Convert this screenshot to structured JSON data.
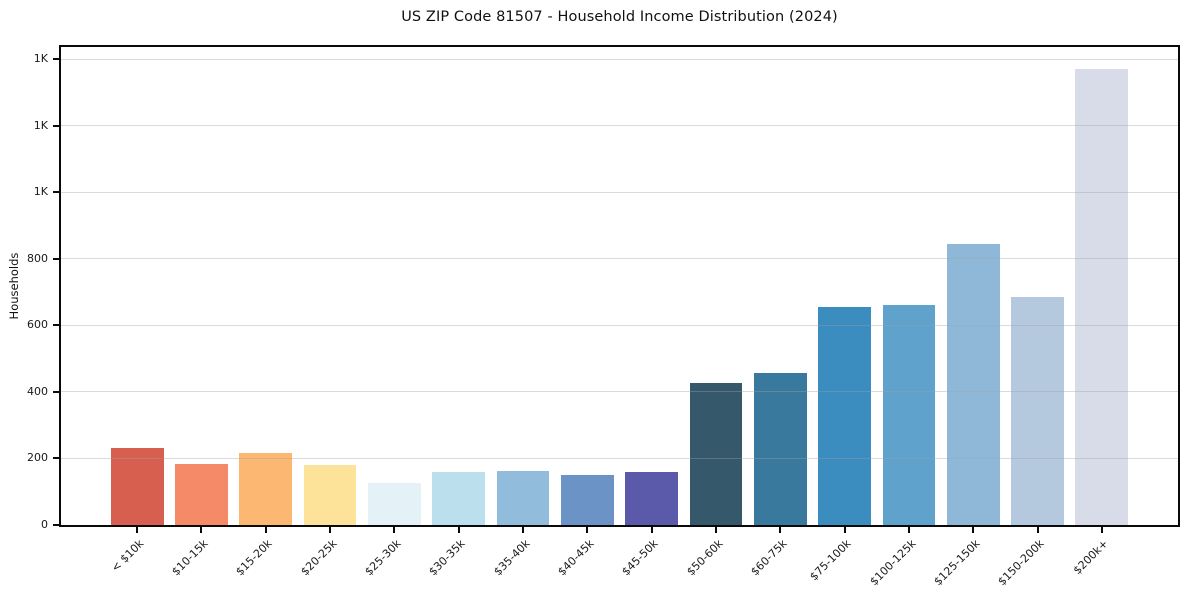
{
  "figure": {
    "title": "US ZIP Code 81507 - Household Income Distribution (2024)",
    "ylabel": "Households"
  },
  "chart_data": {
    "type": "bar",
    "title": "US ZIP Code 81507 - Household Income Distribution (2024)",
    "xlabel": "",
    "ylabel": "Households",
    "categories": [
      "< $10k",
      "$10-15k",
      "$15-20k",
      "$20-25k",
      "$25-30k",
      "$30-35k",
      "$35-40k",
      "$40-45k",
      "$45-50k",
      "$50-60k",
      "$60-75k",
      "$75-100k",
      "$100-125k",
      "$125-150k",
      "$150-200k",
      "$200k+"
    ],
    "values": [
      232,
      183,
      216,
      179,
      126,
      158,
      163,
      150,
      158,
      428,
      458,
      655,
      660,
      845,
      685,
      1370
    ],
    "bar_colors": [
      "#d65f50",
      "#f58a68",
      "#fcb872",
      "#fde299",
      "#e4f1f6",
      "#bcdfee",
      "#92bcdc",
      "#6b93c6",
      "#5b59a9",
      "#36586b",
      "#38799d",
      "#3a8dbe",
      "#5fa2cb",
      "#8fb8d8",
      "#b4c8de",
      "#d8dbe8"
    ],
    "ylim": [
      0,
      1437
    ],
    "ytick_values": [
      0,
      200,
      400,
      600,
      800,
      1000,
      1200,
      1400
    ],
    "ytick_labels": [
      "0",
      "200",
      "400",
      "600",
      "800",
      "1K",
      "1K",
      "1K"
    ],
    "grid": "horizontal",
    "legend": "none"
  }
}
